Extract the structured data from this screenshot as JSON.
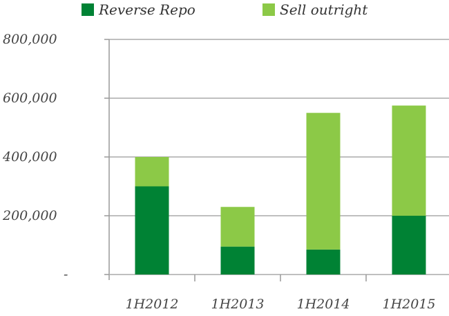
{
  "chart_data": {
    "type": "bar",
    "stacked": true,
    "categories": [
      "1H2012",
      "1H2013",
      "1H2014",
      "1H2015"
    ],
    "series": [
      {
        "name": "Reverse Repo",
        "color": "#008234",
        "values": [
          300000,
          95000,
          85000,
          200000
        ]
      },
      {
        "name": "Sell outright",
        "color": "#8cc947",
        "values": [
          100000,
          135000,
          465000,
          375000
        ]
      }
    ],
    "ylim": [
      0,
      800000
    ],
    "yticks": [
      0,
      200000,
      400000,
      600000,
      800000
    ],
    "ytick_labels": [
      "-",
      "200,000",
      "400,000",
      "600,000",
      "800,000"
    ],
    "grid": true,
    "legend": "top"
  }
}
